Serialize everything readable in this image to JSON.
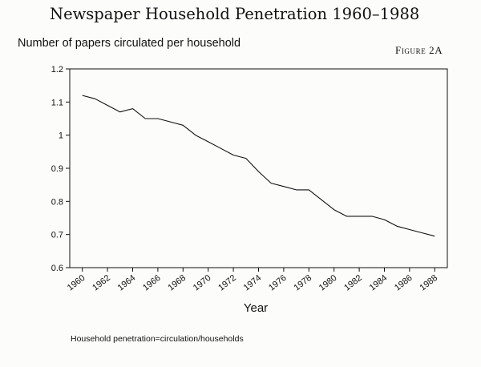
{
  "chart_data": {
    "type": "line",
    "title": "Newspaper Household Penetration 1960–1988",
    "ylabel": "Number of papers circulated per household",
    "xlabel": "Year",
    "figure_label": "Figure 2A",
    "footnote": "Household penetration=circulation/households",
    "ylim": [
      0.6,
      1.2
    ],
    "xlim": [
      1959,
      1989
    ],
    "y_ticks": [
      "0.6",
      "0.7",
      "0.8",
      "0.9",
      "1",
      "1.1",
      "1.2"
    ],
    "x_ticks": [
      "1960",
      "1962",
      "1964",
      "1966",
      "1968",
      "1970",
      "1972",
      "1974",
      "1976",
      "1978",
      "1980",
      "1982",
      "1984",
      "1986",
      "1988"
    ],
    "grid": false,
    "series": [
      {
        "x": [
          1960,
          1961,
          1962,
          1963,
          1964,
          1965,
          1966,
          1967,
          1968,
          1969,
          1970,
          1971,
          1972,
          1973,
          1974,
          1975,
          1976,
          1977,
          1978,
          1979,
          1980,
          1981,
          1982,
          1983,
          1984,
          1985,
          1986,
          1987,
          1988
        ],
        "values": [
          1.12,
          1.11,
          1.09,
          1.07,
          1.08,
          1.05,
          1.05,
          1.04,
          1.03,
          1.0,
          0.98,
          0.96,
          0.94,
          0.93,
          0.89,
          0.855,
          0.845,
          0.835,
          0.835,
          0.805,
          0.775,
          0.755,
          0.755,
          0.755,
          0.745,
          0.725,
          0.715,
          0.705,
          0.695
        ],
        "color": "#111111"
      }
    ]
  }
}
